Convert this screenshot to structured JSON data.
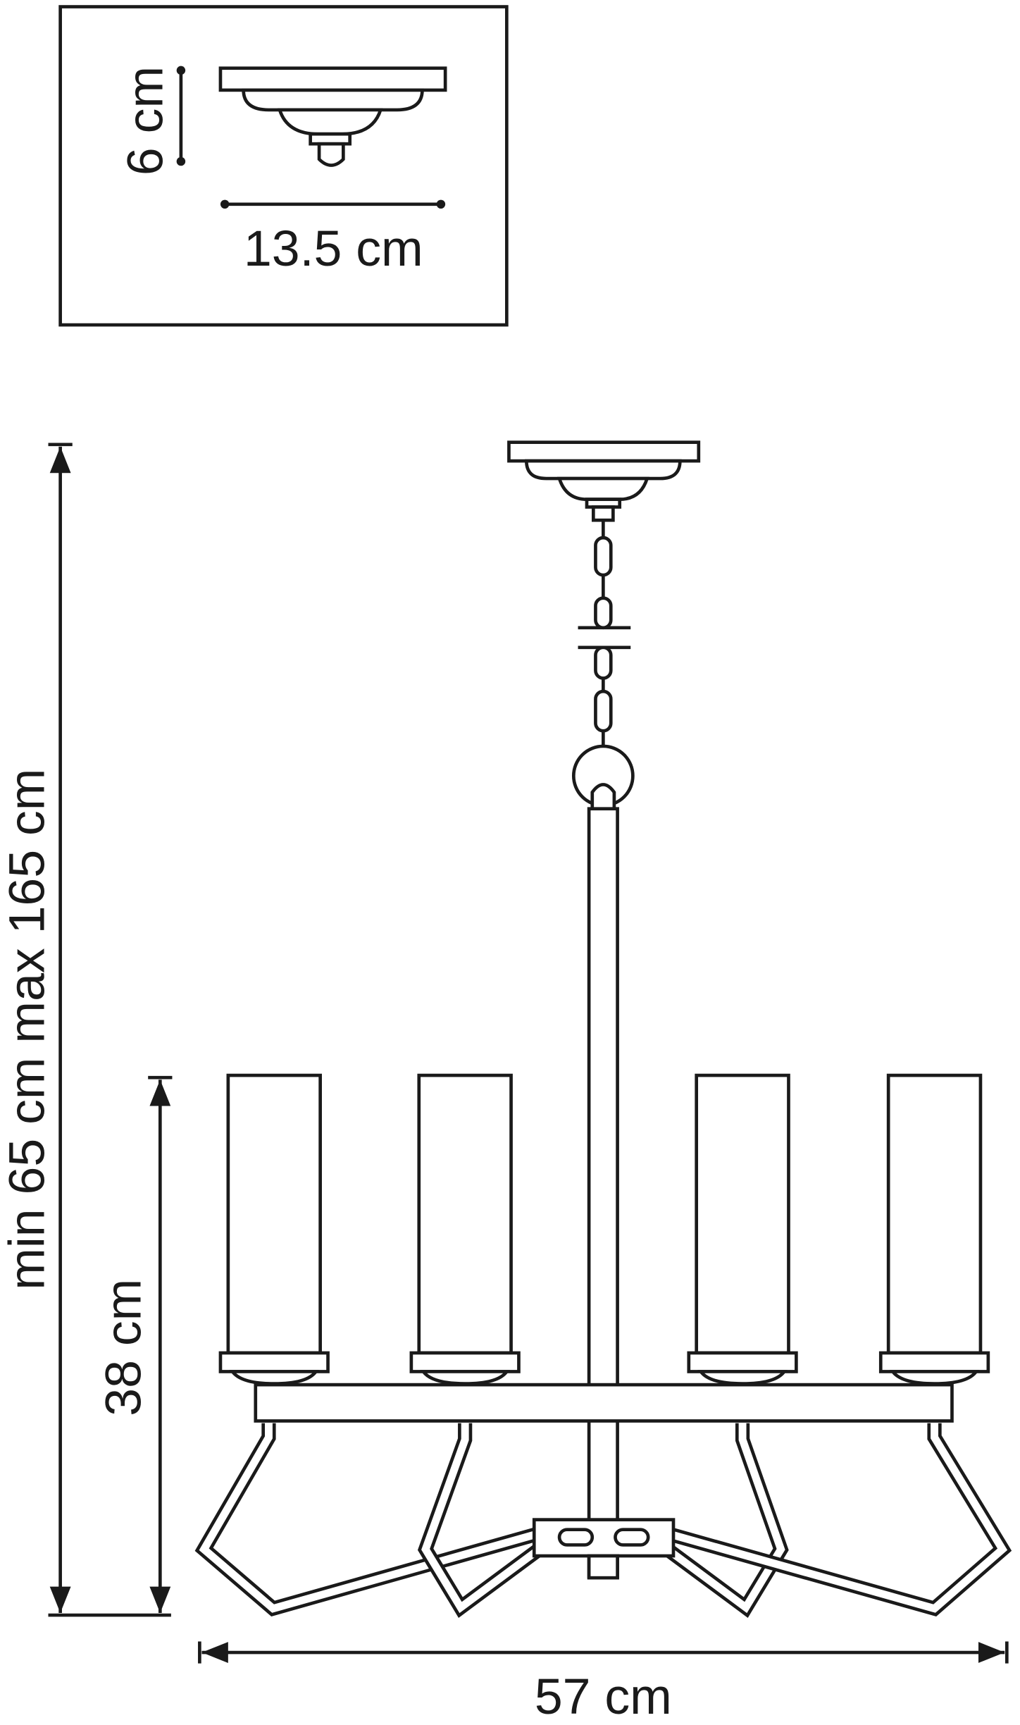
{
  "inset": {
    "height_label": "6 cm",
    "width_label": "13.5 cm"
  },
  "main": {
    "total_height_label": "min 65 cm max 165 cm",
    "body_height_label": "38 cm",
    "width_label": "57 cm"
  },
  "colors": {
    "line": "#1a1a1a",
    "background": "#ffffff"
  }
}
